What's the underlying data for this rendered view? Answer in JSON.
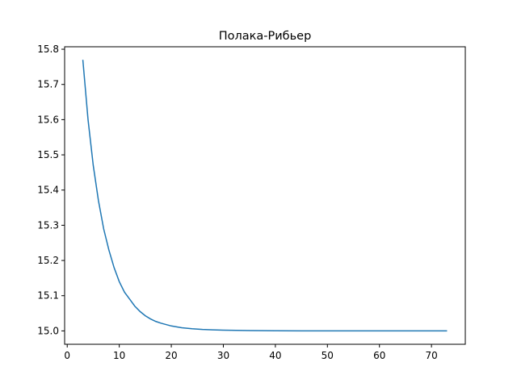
{
  "chart_data": {
    "type": "line",
    "title": "Полака-Рибьер",
    "xlabel": "",
    "ylabel": "",
    "xlim": [
      -0.5,
      76.5
    ],
    "ylim": [
      14.962,
      15.807
    ],
    "x_ticks": [
      0,
      10,
      20,
      30,
      40,
      50,
      60,
      70
    ],
    "y_ticks": [
      15.0,
      15.1,
      15.2,
      15.3,
      15.4,
      15.5,
      15.6,
      15.7,
      15.8
    ],
    "x_tick_labels": [
      "0",
      "10",
      "20",
      "30",
      "40",
      "50",
      "60",
      "70"
    ],
    "y_tick_labels": [
      "15.0",
      "15.1",
      "15.2",
      "15.3",
      "15.4",
      "15.5",
      "15.6",
      "15.7",
      "15.8"
    ],
    "grid": false,
    "series": [
      {
        "color": "#1f77b4",
        "x": [
          3,
          4,
          5,
          6,
          7,
          8,
          9,
          10,
          11,
          12,
          13,
          14,
          15,
          16,
          17,
          18,
          20,
          22,
          24,
          26,
          28,
          30,
          35,
          40,
          45,
          50,
          55,
          60,
          65,
          70,
          73
        ],
        "y": [
          15.77,
          15.6,
          15.47,
          15.37,
          15.29,
          15.23,
          15.18,
          15.14,
          15.11,
          15.09,
          15.07,
          15.055,
          15.043,
          15.034,
          15.027,
          15.022,
          15.014,
          15.009,
          15.006,
          15.004,
          15.003,
          15.002,
          15.001,
          15.0005,
          15.0,
          15.0,
          15.0,
          15.0,
          15.0,
          15.0,
          15.0
        ]
      }
    ]
  }
}
